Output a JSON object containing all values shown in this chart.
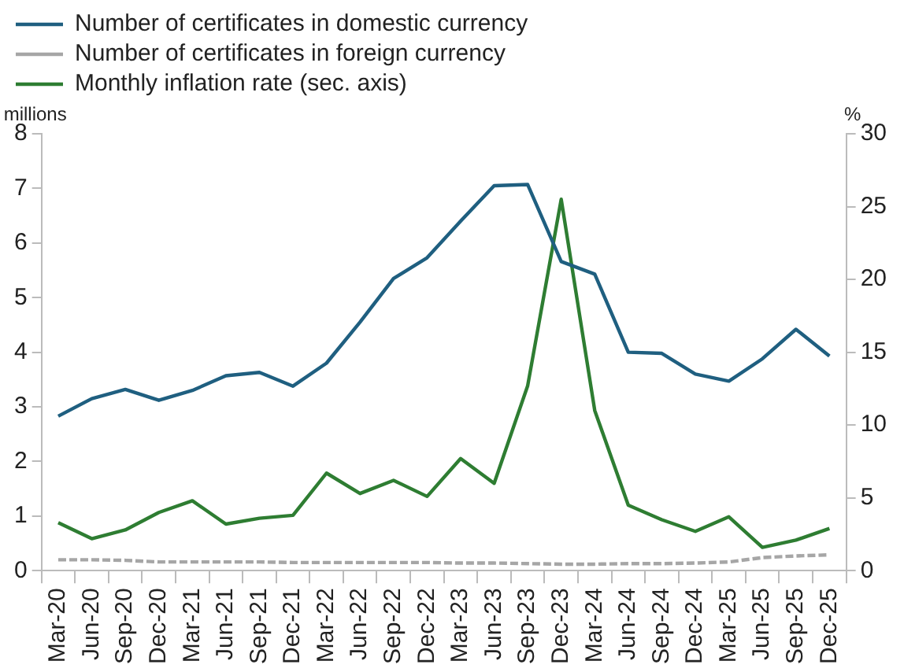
{
  "chart_data": {
    "type": "line",
    "ylabel": "millions",
    "y2label": "%",
    "legend": "top left",
    "grid": false,
    "categories": [
      "Mar-20",
      "Jun-20",
      "Sep-20",
      "Dec-20",
      "Mar-21",
      "Jun-21",
      "Sep-21",
      "Dec-21",
      "Mar-22",
      "Jun-22",
      "Sep-22",
      "Dec-22",
      "Mar-23",
      "Jun-23",
      "Sep-23",
      "Dec-23",
      "Mar-24",
      "Jun-24",
      "Sep-24",
      "Dec-24",
      "Mar-25",
      "Jun-25",
      "Sep-25",
      "Dec-25"
    ],
    "ylim": [
      0,
      8
    ],
    "yticks": [
      0,
      1,
      2,
      3,
      4,
      5,
      6,
      7,
      8
    ],
    "y2lim": [
      0,
      30
    ],
    "y2ticks": [
      0,
      5,
      10,
      15,
      20,
      25,
      30
    ],
    "series": [
      {
        "name": "Number of certificates in domestic currency",
        "color": "#1f5f80",
        "line_style": "solid",
        "values": [
          2.83,
          3.15,
          3.32,
          3.12,
          3.3,
          3.57,
          3.63,
          3.38,
          3.8,
          4.55,
          5.35,
          5.73,
          6.4,
          7.05,
          7.07,
          5.66,
          5.43,
          4.0,
          3.98,
          3.6,
          3.47,
          3.88,
          4.42,
          3.93
        ]
      },
      {
        "name": "Number of certificates in foreign currency",
        "color": "#a6a6a6",
        "line_style": "dashed",
        "values": [
          0.2,
          0.2,
          0.19,
          0.16,
          0.16,
          0.16,
          0.16,
          0.15,
          0.15,
          0.15,
          0.15,
          0.15,
          0.14,
          0.14,
          0.13,
          0.12,
          0.12,
          0.13,
          0.13,
          0.14,
          0.16,
          0.24,
          0.27,
          0.29
        ]
      },
      {
        "name": "Monthly inflation rate (sec. axis)",
        "color": "#2e7d32",
        "line_style": "solid",
        "axis": "y2",
        "values": [
          3.3,
          2.2,
          2.8,
          4.0,
          4.8,
          3.2,
          3.6,
          3.8,
          6.7,
          5.3,
          6.2,
          5.1,
          7.7,
          6.0,
          12.7,
          25.5,
          11.0,
          4.5,
          3.5,
          2.7,
          3.7,
          1.6,
          2.1,
          2.9
        ]
      }
    ]
  }
}
